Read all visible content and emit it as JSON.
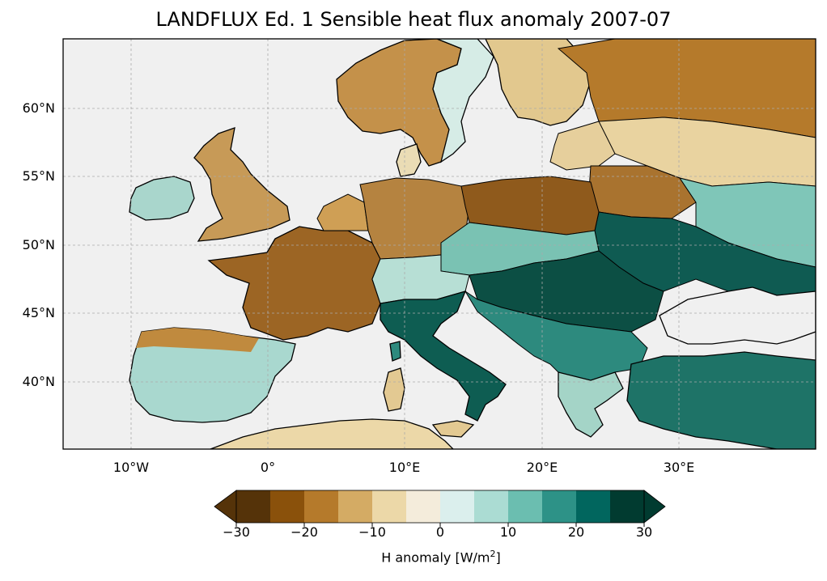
{
  "title": "LANDFLUX Ed. 1 Sensible heat flux anomaly 2007-07",
  "map": {
    "lat_labels": [
      "60°N",
      "55°N",
      "50°N",
      "45°N",
      "40°N"
    ],
    "lon_labels": [
      "10°W",
      "0°",
      "10°E",
      "20°E",
      "30°E"
    ],
    "gridlines": true,
    "extent": {
      "lon": [
        -15,
        40
      ],
      "lat": [
        35,
        65
      ]
    },
    "ocean_color": "#f0f0f0",
    "coastline_color": "#000000"
  },
  "colorbar": {
    "label": "H anomaly [W/m",
    "label_sup": "2",
    "label_end": "]",
    "tick_labels": [
      "−30",
      "−20",
      "−10",
      "0",
      "10",
      "20",
      "30"
    ],
    "extend": "both",
    "colors": [
      "#553309",
      "#8a510b",
      "#b57a2b",
      "#d4ab64",
      "#ecd8a8",
      "#f4ecdb",
      "#dbefed",
      "#abdcd3",
      "#6bbeb0",
      "#2d9287",
      "#01665e",
      "#013b30"
    ]
  }
}
